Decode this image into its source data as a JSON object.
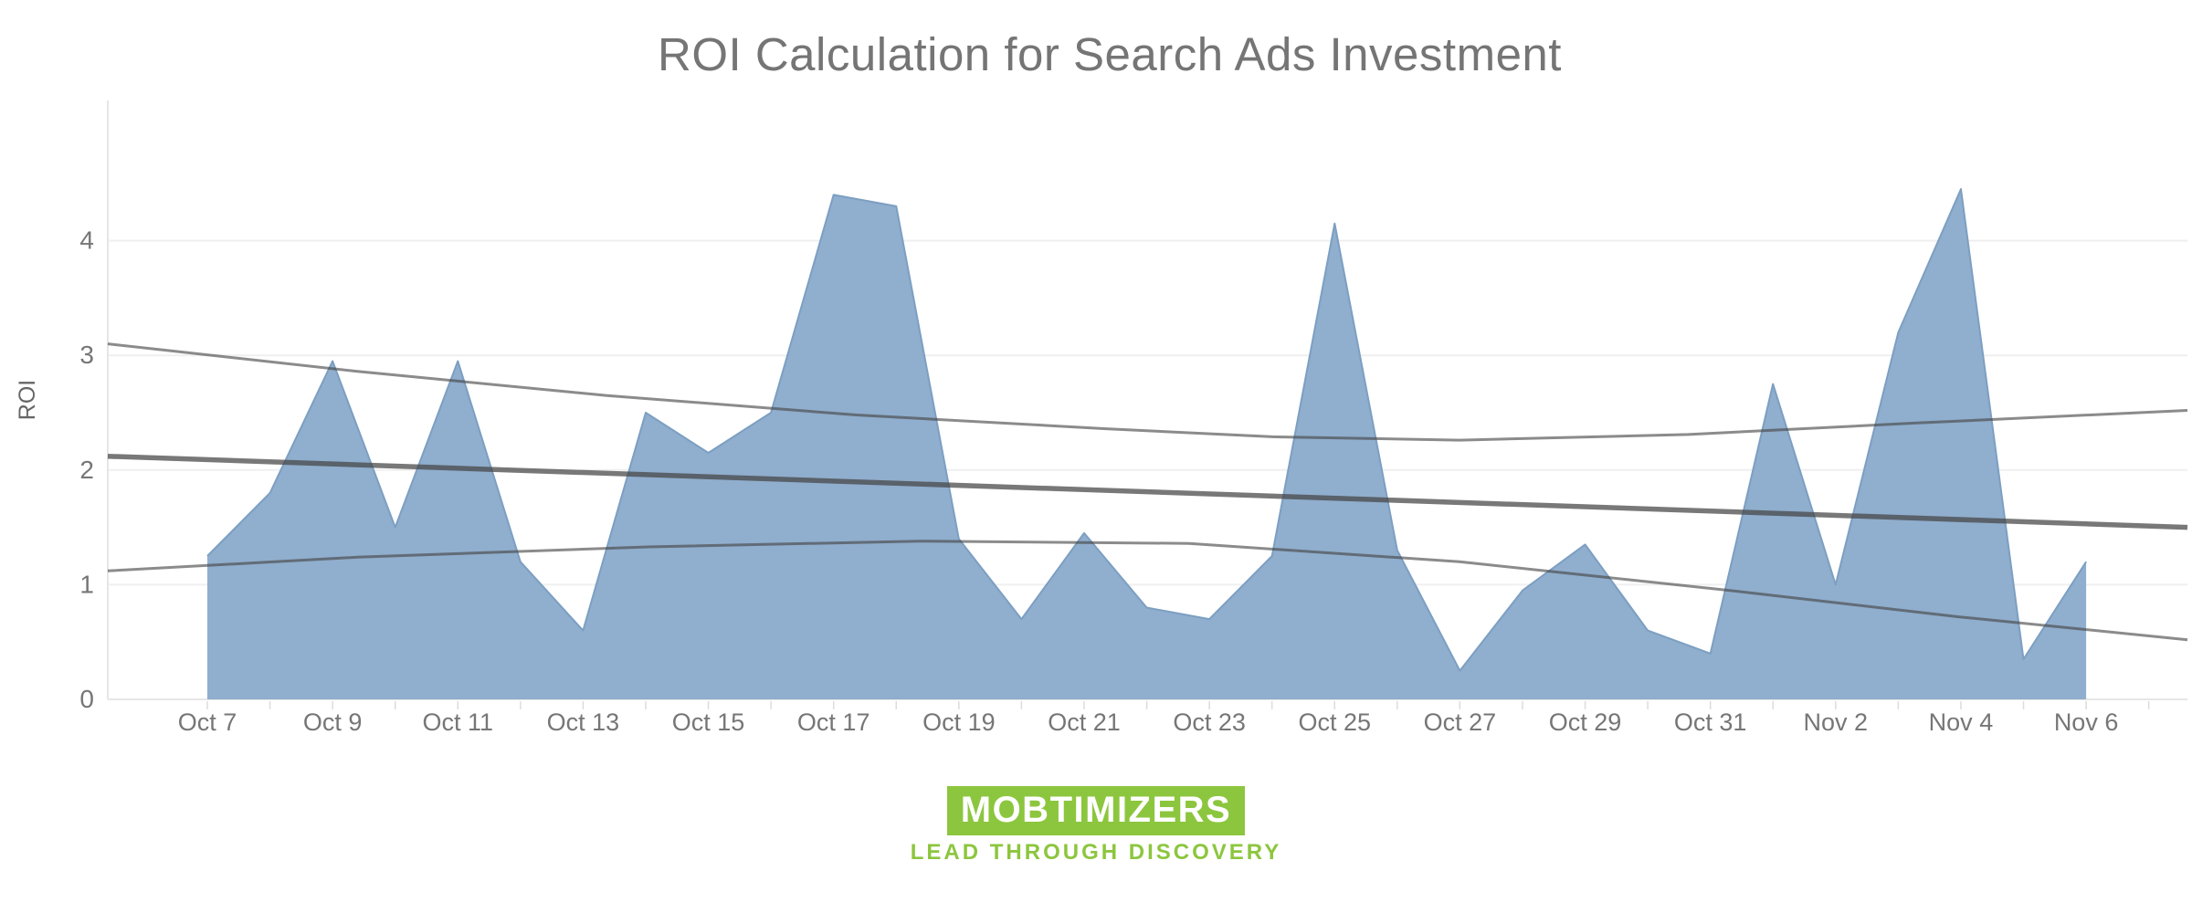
{
  "title": "ROI Calculation for Search Ads Investment",
  "y_axis": {
    "label": "ROI",
    "ticks": [
      0,
      1,
      2,
      3,
      4
    ]
  },
  "x_axis": {
    "labels": [
      "Oct 7",
      "Oct 9",
      "Oct 11",
      "Oct 13",
      "Oct 15",
      "Oct 17",
      "Oct 19",
      "Oct 21",
      "Oct 23",
      "Oct 25",
      "Oct 27",
      "Oct 29",
      "Oct 31",
      "Nov 2",
      "Nov 4",
      "Nov 6"
    ]
  },
  "chart_data": {
    "type": "area",
    "title": "ROI Calculation for Search Ads Investment",
    "xlabel": "",
    "ylabel": "ROI",
    "ylim": [
      0,
      5.2
    ],
    "yticks": [
      0,
      1,
      2,
      3,
      4
    ],
    "grid": "horizontal",
    "legend": "none",
    "x": [
      "Oct 7",
      "Oct 8",
      "Oct 9",
      "Oct 10",
      "Oct 11",
      "Oct 12",
      "Oct 13",
      "Oct 14",
      "Oct 15",
      "Oct 16",
      "Oct 17",
      "Oct 18",
      "Oct 19",
      "Oct 20",
      "Oct 21",
      "Oct 22",
      "Oct 23",
      "Oct 24",
      "Oct 25",
      "Oct 26",
      "Oct 27",
      "Oct 28",
      "Oct 29",
      "Oct 30",
      "Oct 31",
      "Nov 1",
      "Nov 2",
      "Nov 3",
      "Nov 4",
      "Nov 5",
      "Nov 6"
    ],
    "values": [
      1.25,
      1.8,
      2.95,
      1.5,
      2.95,
      1.2,
      0.6,
      2.5,
      2.15,
      2.5,
      4.4,
      4.3,
      1.4,
      0.7,
      1.45,
      0.8,
      0.7,
      1.25,
      4.15,
      1.3,
      0.25,
      0.95,
      1.35,
      0.6,
      0.4,
      2.75,
      1.0,
      3.2,
      4.45,
      0.35,
      1.2
    ],
    "trend_line": {
      "type": "linear",
      "start_value": 2.12,
      "end_value": 1.5
    },
    "confidence_band": {
      "upper": [
        [
          0,
          3.1
        ],
        [
          0.12,
          2.86
        ],
        [
          0.24,
          2.65
        ],
        [
          0.36,
          2.48
        ],
        [
          0.48,
          2.36
        ],
        [
          0.56,
          2.29
        ],
        [
          0.65,
          2.26
        ],
        [
          0.76,
          2.31
        ],
        [
          0.87,
          2.41
        ],
        [
          1.0,
          2.52
        ]
      ],
      "lower": [
        [
          0,
          1.12
        ],
        [
          0.12,
          1.24
        ],
        [
          0.26,
          1.33
        ],
        [
          0.39,
          1.38
        ],
        [
          0.52,
          1.36
        ],
        [
          0.65,
          1.2
        ],
        [
          0.78,
          0.95
        ],
        [
          0.89,
          0.72
        ],
        [
          1.0,
          0.52
        ]
      ]
    }
  },
  "logo": {
    "name": "MOBTIMIZERS",
    "tagline": "LEAD THROUGH DISCOVERY"
  },
  "colors": {
    "area_fill": "#90AECD",
    "area_stroke": "#7C9FC2",
    "trend_gray": "#444444",
    "grid_line": "#EFEFEF",
    "axis_line": "#E6E6E6",
    "tick_mark": "#DCDCDC",
    "axis_text": "#767676",
    "title_text": "#757575",
    "logo_green": "#8CC63E",
    "background": "#FFFFFF"
  }
}
